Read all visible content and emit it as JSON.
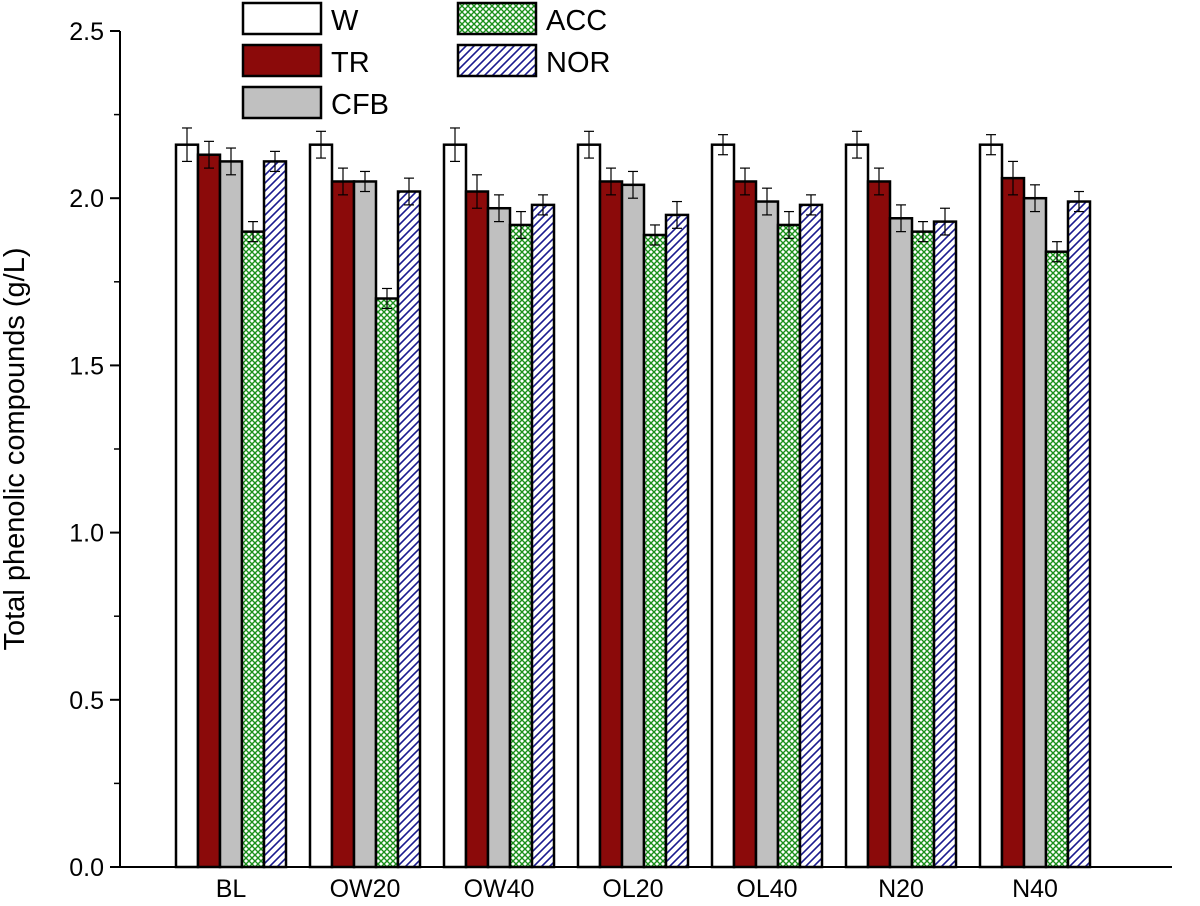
{
  "chart_data": {
    "type": "bar",
    "title": "",
    "xlabel": "",
    "ylabel": "Total phenolic compounds (g/L)",
    "ylim": [
      0,
      2.5
    ],
    "yticks": [
      "0.0",
      "0.5",
      "1.0",
      "1.5",
      "2.0",
      "2.5"
    ],
    "categories": [
      "BL",
      "OW20",
      "OW40",
      "OL20",
      "OL40",
      "N20",
      "N40"
    ],
    "series": [
      {
        "name": "W",
        "pattern": "none",
        "fill": "#ffffff",
        "values": [
          2.16,
          2.16,
          2.16,
          2.16,
          2.16,
          2.16,
          2.16
        ],
        "errors": [
          0.05,
          0.04,
          0.05,
          0.04,
          0.03,
          0.04,
          0.03
        ]
      },
      {
        "name": "TR",
        "pattern": "solid",
        "fill": "#8b0a0a",
        "values": [
          2.13,
          2.05,
          2.02,
          2.05,
          2.05,
          2.05,
          2.06
        ],
        "errors": [
          0.04,
          0.04,
          0.05,
          0.04,
          0.04,
          0.04,
          0.05
        ]
      },
      {
        "name": "CFB",
        "pattern": "solid",
        "fill": "#c0c0c0",
        "values": [
          2.11,
          2.05,
          1.97,
          2.04,
          1.99,
          1.94,
          2.0
        ],
        "errors": [
          0.04,
          0.03,
          0.04,
          0.04,
          0.04,
          0.04,
          0.04
        ]
      },
      {
        "name": "ACC",
        "pattern": "crosshatch",
        "fill": "#1a8f1a",
        "values": [
          1.9,
          1.7,
          1.92,
          1.89,
          1.92,
          1.9,
          1.84
        ],
        "errors": [
          0.03,
          0.03,
          0.04,
          0.03,
          0.04,
          0.03,
          0.03
        ]
      },
      {
        "name": "NOR",
        "pattern": "diagonal",
        "fill": "#1a1a8f",
        "values": [
          2.11,
          2.02,
          1.98,
          1.95,
          1.98,
          1.93,
          1.99
        ],
        "errors": [
          0.03,
          0.04,
          0.03,
          0.04,
          0.03,
          0.04,
          0.03
        ]
      }
    ],
    "legend_placement": "top-left",
    "grid": false
  }
}
